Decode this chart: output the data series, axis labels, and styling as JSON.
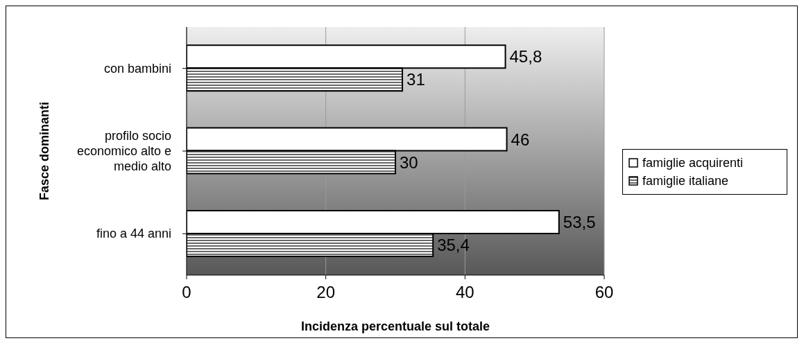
{
  "chart_data": {
    "type": "bar",
    "orientation": "horizontal",
    "xlabel": "Incidenza percentuale sul totale",
    "ylabel": "Fasce dominanti",
    "categories": [
      "con bambini",
      "profilo socio economico alto e medio alto",
      "fino a 44 anni"
    ],
    "series": [
      {
        "name": "famiglie acquirenti",
        "color": "#ffffff",
        "values": [
          45.8,
          46,
          53.5
        ],
        "value_labels": [
          "45,8",
          "46",
          "53,5"
        ]
      },
      {
        "name": "famiglie italiane",
        "color": "#000000",
        "values": [
          31,
          30,
          35.4
        ],
        "value_labels": [
          "31",
          "30",
          "35,4"
        ]
      }
    ],
    "xlim": [
      0,
      60
    ],
    "xticks": [
      0,
      20,
      40,
      60
    ],
    "grid": "x",
    "legend": "right"
  }
}
